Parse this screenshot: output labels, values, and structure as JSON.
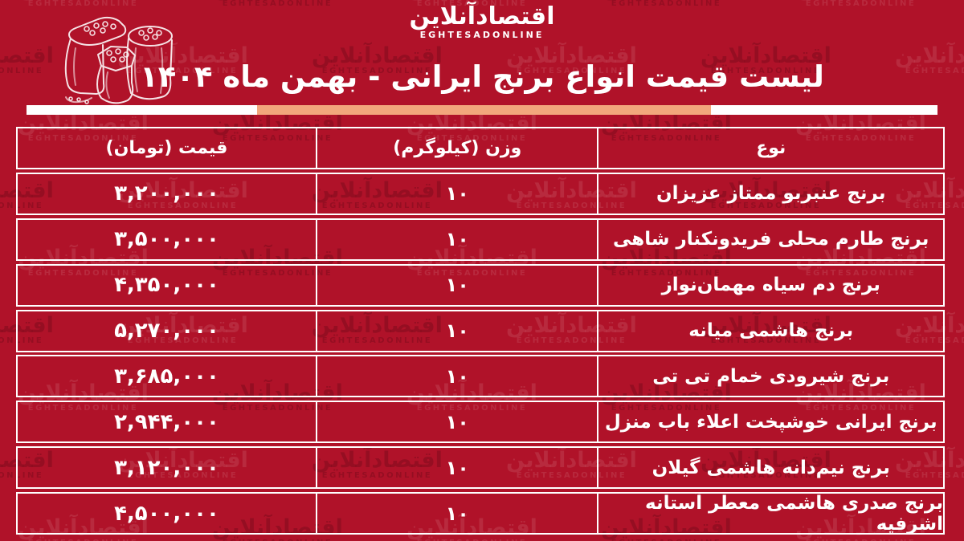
{
  "brand": {
    "logo_fa": "اقتصادآنلاین",
    "logo_en": "EGHTESADONLINE"
  },
  "header": {
    "title": "لیست قیمت انواع برنج ایرانی - بهمن ماه ۱۴۰۴"
  },
  "colors": {
    "background": "#b01229",
    "text": "#ffffff",
    "table_border": "#ffffff",
    "divider_accent": "#f2a77c"
  },
  "table": {
    "columns": {
      "type": "نوع",
      "weight": "وزن (کیلوگرم)",
      "price": "قیمت (تومان)"
    },
    "rows": [
      {
        "type": "برنج عنبربو ممتاز عزیزان",
        "weight": "۱۰",
        "price": "۳,۲۰۰,۰۰۰"
      },
      {
        "type": "برنج طارم محلی فریدونکنار شاهی",
        "weight": "۱۰",
        "price": "۳,۵۰۰,۰۰۰"
      },
      {
        "type": "برنج دم سیاه مهمان‌نواز",
        "weight": "۱۰",
        "price": "۴,۳۵۰,۰۰۰"
      },
      {
        "type": "برنج هاشمی میانه",
        "weight": "۱۰",
        "price": "۵,۲۷۰,۰۰۰"
      },
      {
        "type": "برنج شیرودی خمام تی تی",
        "weight": "۱۰",
        "price": "۳,۶۸۵,۰۰۰"
      },
      {
        "type": "برنج ایرانی خوشپخت اعلاء باب منزل",
        "weight": "۱۰",
        "price": "۲,۹۴۴,۰۰۰"
      },
      {
        "type": "برنج نیم‌دانه هاشمی گیلان",
        "weight": "۱۰",
        "price": "۳,۱۲۰,۰۰۰"
      },
      {
        "type": "برنج صدری هاشمی معطر آستانه اشرفیه",
        "weight": "۱۰",
        "price": "۴,۵۰۰,۰۰۰"
      }
    ]
  },
  "chart_data": {
    "type": "table",
    "title": "لیست قیمت انواع برنج ایرانی - بهمن ماه ۱۴۰۴",
    "columns": [
      "نوع",
      "وزن (کیلوگرم)",
      "قیمت (تومان)"
    ],
    "categories": [
      "برنج عنبربو ممتاز عزیزان",
      "برنج طارم محلی فریدونکنار شاهی",
      "برنج دم سیاه مهمان‌نواز",
      "برنج هاشمی میانه",
      "برنج شیرودی خمام تی تی",
      "برنج ایرانی خوشپخت اعلاء باب منزل",
      "برنج نیم‌دانه هاشمی گیلان",
      "برنج صدری هاشمی معطر آستانه اشرفیه"
    ],
    "weights_kg": [
      10,
      10,
      10,
      10,
      10,
      10,
      10,
      10
    ],
    "prices_toman": [
      3200000,
      3500000,
      4350000,
      5270000,
      3685000,
      2944000,
      3120000,
      4500000
    ]
  },
  "illustration": {
    "name": "rice-sacks-sketch"
  }
}
